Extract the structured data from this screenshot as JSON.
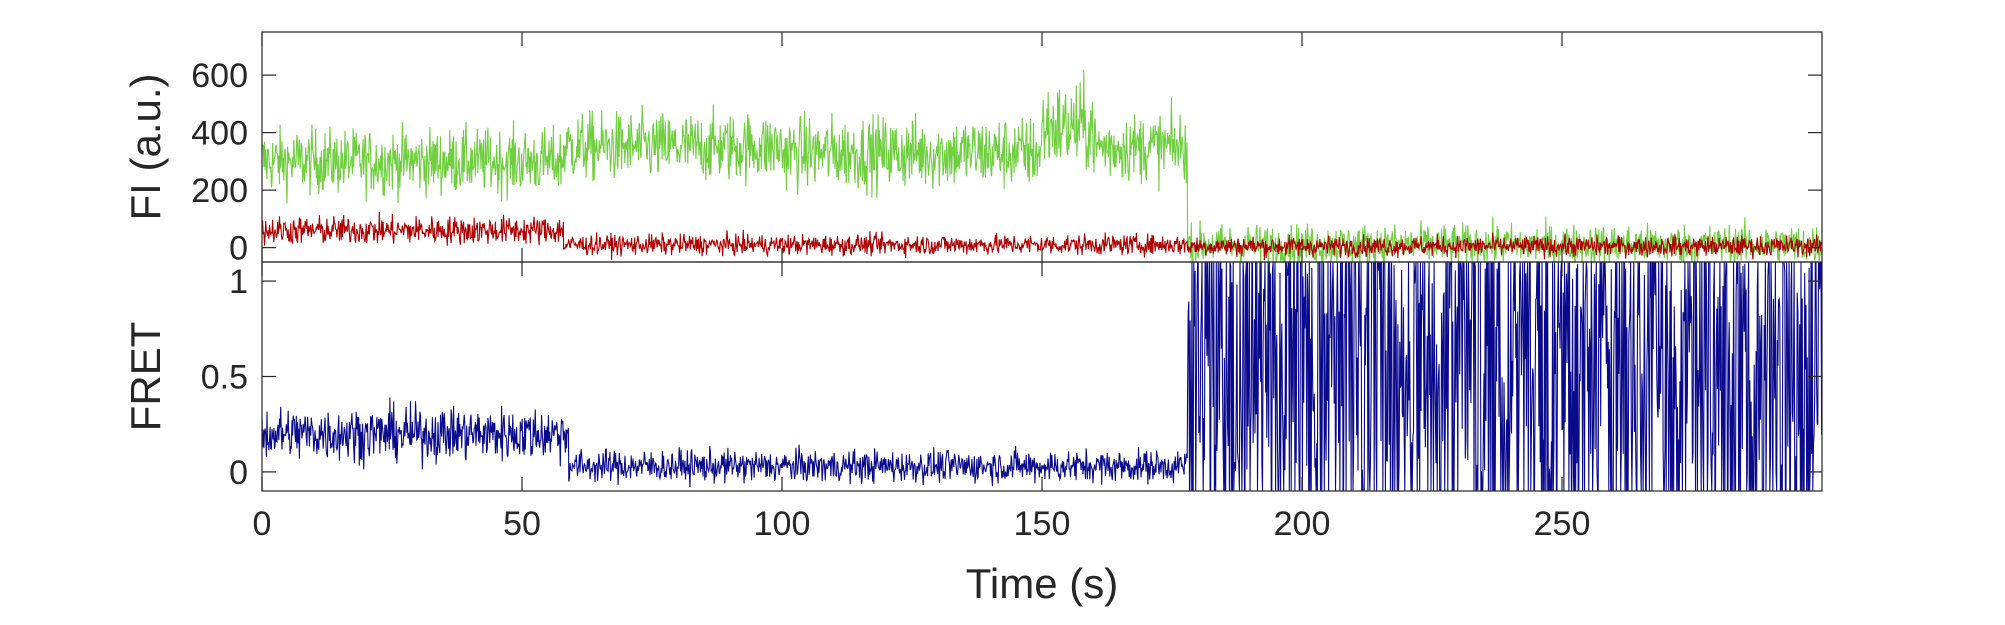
{
  "chart_data": [
    {
      "type": "line",
      "panel": "top",
      "ylabel": "FI (a.u.)",
      "xlim": [
        0,
        300
      ],
      "ylim": [
        -50,
        750
      ],
      "yticks": [
        0,
        200,
        400,
        600
      ],
      "yticklabels": [
        "0",
        "200",
        "400",
        "600"
      ],
      "grid": false,
      "series": [
        {
          "color": "#6fcf3f",
          "segments": [
            {
              "x_start": 0,
              "x_end": 58,
              "mean": 300,
              "noise": 80
            },
            {
              "x_start": 58,
              "x_end": 100,
              "mean": 350,
              "noise": 85
            },
            {
              "x_start": 100,
              "x_end": 150,
              "mean": 330,
              "noise": 90
            },
            {
              "x_start": 150,
              "x_end": 160,
              "mean": 420,
              "noise": 110
            },
            {
              "x_start": 160,
              "x_end": 178,
              "mean": 350,
              "noise": 85
            },
            {
              "x_start": 178,
              "x_end": 300,
              "mean": 10,
              "noise": 50
            }
          ]
        },
        {
          "color": "#b00000",
          "segments": [
            {
              "x_start": 0,
              "x_end": 58,
              "mean": 60,
              "noise": 35
            },
            {
              "x_start": 58,
              "x_end": 178,
              "mean": 10,
              "noise": 25
            },
            {
              "x_start": 178,
              "x_end": 300,
              "mean": 5,
              "noise": 25
            }
          ]
        }
      ]
    },
    {
      "type": "line",
      "panel": "bottom",
      "xlabel": "Time (s)",
      "ylabel": "FRET",
      "xlim": [
        0,
        300
      ],
      "ylim": [
        -0.1,
        1.1
      ],
      "xticks": [
        0,
        50,
        100,
        150,
        200,
        250
      ],
      "xticklabels": [
        "0",
        "50",
        "100",
        "150",
        "200",
        "250"
      ],
      "yticks": [
        0,
        0.5,
        1
      ],
      "yticklabels": [
        "0",
        "0.5",
        "1"
      ],
      "grid": false,
      "series": [
        {
          "color": "#0a0a8c",
          "segments": [
            {
              "x_start": 0,
              "x_end": 59,
              "mean": 0.2,
              "noise": 0.1
            },
            {
              "x_start": 59,
              "x_end": 178,
              "mean": 0.03,
              "noise": 0.06
            },
            {
              "x_start": 178,
              "x_end": 300,
              "mean": 0.5,
              "noise": 0.6
            }
          ]
        }
      ]
    }
  ]
}
